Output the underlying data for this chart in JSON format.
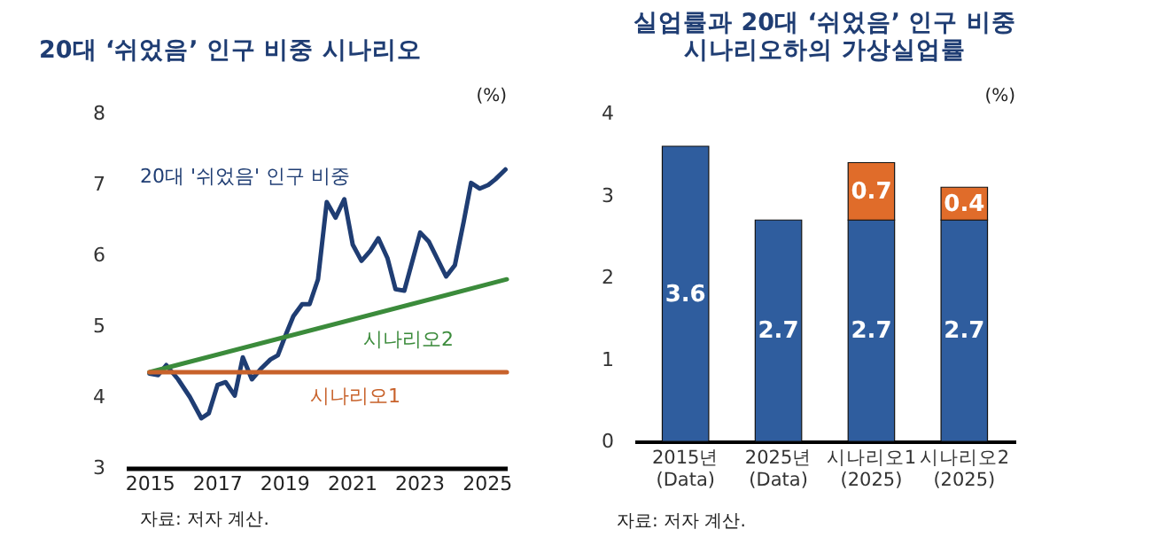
{
  "chart_data": [
    {
      "type": "line",
      "title": "20대 ‘쉬었음’ 인구 비중 시나리오",
      "annotations": [
        "(%)",
        "자료: 저자 계산."
      ],
      "series": [
        {
          "name": "20대 '쉬었음' 인구 비중",
          "color": "#1f3d73",
          "x": [
            2015,
            2015.26,
            2015.5,
            2015.85,
            2016.2,
            2016.54,
            2016.76,
            2017.02,
            2017.26,
            2017.53,
            2017.77,
            2018.04,
            2018.33,
            2018.59,
            2018.81,
            2019.02,
            2019.27,
            2019.53,
            2019.75,
            2020.0,
            2020.26,
            2020.52,
            2020.78,
            2021.03,
            2021.29,
            2021.55,
            2021.79,
            2022.06,
            2022.3,
            2022.56,
            2023.03,
            2023.29,
            2023.8,
            2024.06,
            2024.32,
            2024.54,
            2024.8,
            2025.05,
            2025.26,
            2025.56
          ],
          "values": [
            4.33,
            4.31,
            4.45,
            4.25,
            4.0,
            3.7,
            3.77,
            4.17,
            4.21,
            4.02,
            4.56,
            4.25,
            4.41,
            4.53,
            4.59,
            4.85,
            5.14,
            5.31,
            5.31,
            5.66,
            6.75,
            6.53,
            6.79,
            6.15,
            5.92,
            6.06,
            6.24,
            5.96,
            5.52,
            5.5,
            6.32,
            6.19,
            5.7,
            5.86,
            6.47,
            7.02,
            6.94,
            6.99,
            7.07,
            7.21
          ]
        },
        {
          "name": "시나리오2",
          "color": "#3b8b3b",
          "x": [
            2015,
            2025.6
          ],
          "values": [
            4.35,
            5.66
          ]
        },
        {
          "name": "시나리오1",
          "color": "#c8622b",
          "x": [
            2015,
            2025.6
          ],
          "values": [
            4.35,
            4.35
          ]
        }
      ],
      "xlim": [
        2014.3,
        2025.6
      ],
      "xticks": [
        2015,
        2017,
        2019,
        2021,
        2023,
        2025
      ],
      "ylim": [
        3,
        8
      ],
      "yticks": [
        3,
        4,
        5,
        6,
        7,
        8
      ],
      "grid": false
    },
    {
      "type": "bar",
      "stacked": true,
      "title": "실업률과 20대 ‘쉬었음’ 인구 비중\n시나리오하의 가상실업률",
      "annotations": [
        "(%)",
        "자료: 저자 계산."
      ],
      "categories": [
        "2015년\n(Data)",
        "2025년\n(Data)",
        "시나리오1\n(2025)",
        "시나리오2\n(2025)"
      ],
      "series": [
        {
          "color": "#2f5d9e",
          "values": [
            3.6,
            2.7,
            2.7,
            2.7
          ]
        },
        {
          "color": "#e06c2a",
          "values": [
            null,
            null,
            0.7,
            0.4
          ]
        }
      ],
      "data_labels": true,
      "ylim": [
        0,
        4
      ],
      "yticks": [
        0,
        1,
        2,
        3,
        4
      ],
      "grid": false
    }
  ]
}
